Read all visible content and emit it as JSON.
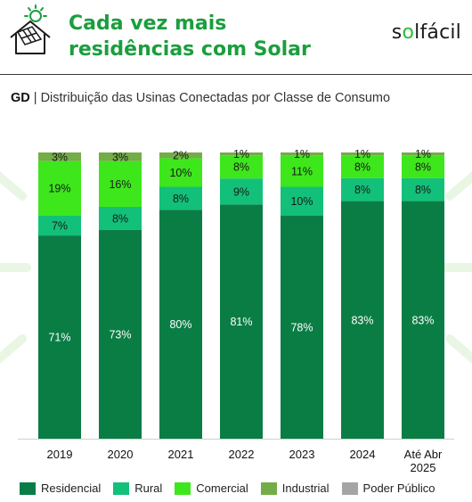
{
  "header": {
    "title_line1": "Cada vez mais",
    "title_line2": "residências com Solar",
    "brand": "solfácil",
    "brand_prefix": "s",
    "brand_o": "o",
    "brand_suffix": "lfácil"
  },
  "subtitle": {
    "prefix": "GD",
    "separator": " | ",
    "text": "Distribuição das Usinas Conectadas por Classe de Consumo"
  },
  "colors": {
    "title": "#1b9e3e",
    "Residencial": "#0a7d45",
    "Rural": "#12c07a",
    "Comercial": "#3ee61c",
    "Industrial": "#73ad47",
    "Poder Público": "#a5a5a5"
  },
  "chart_data": {
    "type": "bar",
    "stacked": true,
    "normalized": true,
    "categories": [
      "2019",
      "2020",
      "2021",
      "2022",
      "2023",
      "2024",
      "Até Abr 2025"
    ],
    "category_lines": [
      [
        "2019"
      ],
      [
        "2020"
      ],
      [
        "2021"
      ],
      [
        "2022"
      ],
      [
        "2023"
      ],
      [
        "2024"
      ],
      [
        "Até Abr",
        "2025"
      ]
    ],
    "series": [
      {
        "name": "Residencial",
        "values": [
          71,
          73,
          80,
          81,
          78,
          83,
          83
        ]
      },
      {
        "name": "Rural",
        "values": [
          7,
          8,
          8,
          9,
          10,
          8,
          8
        ]
      },
      {
        "name": "Comercial",
        "values": [
          19,
          16,
          10,
          8,
          11,
          8,
          8
        ]
      },
      {
        "name": "Industrial",
        "values": [
          3,
          3,
          2,
          1,
          1,
          1,
          1
        ]
      },
      {
        "name": "Poder Público",
        "values": [
          null,
          null,
          null,
          null,
          null,
          null,
          null
        ]
      }
    ],
    "data_labels": [
      [
        "71%",
        "73%",
        "80%",
        "81%",
        "78%",
        "83%",
        "83%"
      ],
      [
        "7%",
        "8%",
        "8%",
        "9%",
        "10%",
        "8%",
        "8%"
      ],
      [
        "19%",
        "16%",
        "10%",
        "8%",
        "11%",
        "8%",
        "8%"
      ],
      [
        "3%",
        "3%",
        "2%",
        "1%",
        "1%",
        "1%",
        "1%"
      ],
      [
        null,
        null,
        null,
        null,
        null,
        null,
        null
      ]
    ],
    "ylim": [
      0,
      100
    ],
    "grid": false,
    "legend_position": "bottom"
  }
}
